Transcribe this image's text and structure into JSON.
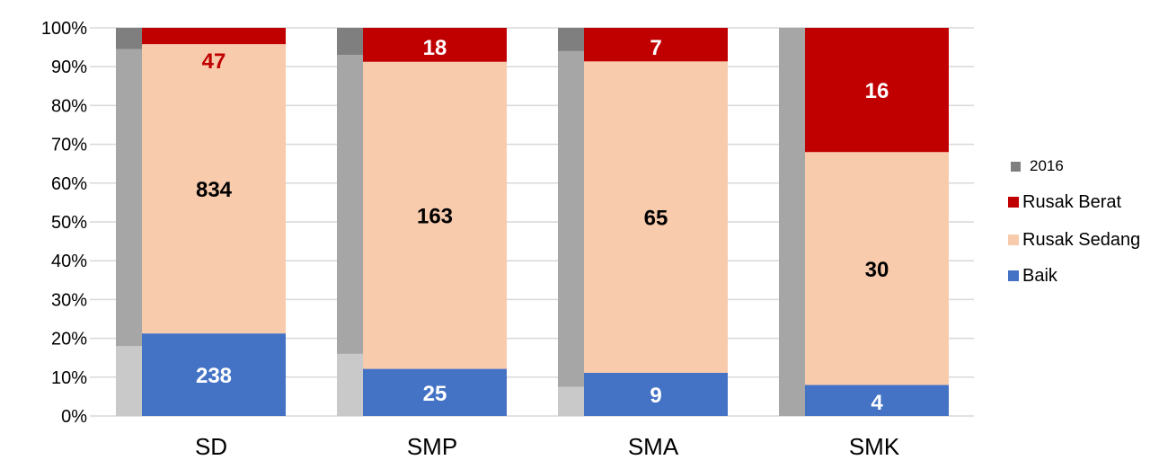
{
  "chart_data": {
    "type": "bar",
    "stacked": true,
    "normalized": true,
    "categories": [
      "SD",
      "SMP",
      "SMA",
      "SMK"
    ],
    "y_ticks": [
      "0%",
      "10%",
      "20%",
      "30%",
      "40%",
      "50%",
      "60%",
      "70%",
      "80%",
      "90%",
      "100%"
    ],
    "ylim": [
      0,
      100
    ],
    "grid": true,
    "legend_position": "right",
    "series": [
      {
        "name": "Baik",
        "color": "#4472c4",
        "values": [
          238,
          25,
          9,
          4
        ],
        "label_color": "#ffffff"
      },
      {
        "name": "Rusak Sedang",
        "color": "#f8cbad",
        "values": [
          834,
          163,
          65,
          30
        ],
        "label_color": "#000000"
      },
      {
        "name": "Rusak Berat",
        "color": "#c00000",
        "values": [
          47,
          18,
          7,
          16
        ],
        "label_color": "#ffffff"
      }
    ],
    "series_2016": {
      "name": "2016",
      "color_light": "#c9c9c9",
      "color_mid": "#a6a6a6",
      "color_dark": "#7f7f7f",
      "percent_segments": [
        [
          18,
          76.5,
          5.5
        ],
        [
          16,
          77,
          7
        ],
        [
          7.5,
          86.5,
          6
        ],
        [
          0,
          100,
          0
        ]
      ]
    },
    "overrides": {
      "SD_rusak_berat_label_color": "#c00000"
    }
  },
  "legend": {
    "items": [
      {
        "label": "2016",
        "color": "#7f7f7f"
      },
      {
        "label": "Rusak Berat",
        "color": "#c00000"
      },
      {
        "label": "Rusak Sedang",
        "color": "#f8cbad"
      },
      {
        "label": "Baik",
        "color": "#4472c4"
      }
    ]
  }
}
